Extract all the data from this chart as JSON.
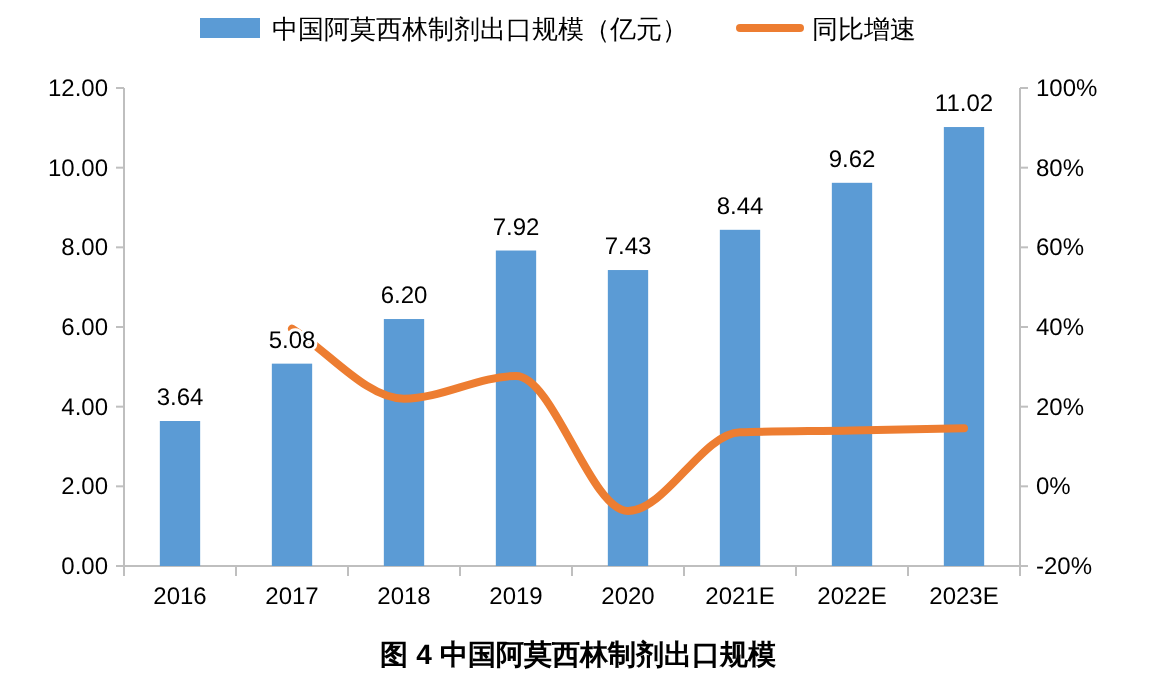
{
  "chart_data": {
    "type": "bar",
    "title": "图 4 中国阿莫西林制剂出口规模",
    "categories": [
      "2016",
      "2017",
      "2018",
      "2019",
      "2020",
      "2021E",
      "2022E",
      "2023E"
    ],
    "series": [
      {
        "name": "中国阿莫西林制剂出口规模（亿元）",
        "color": "#5b9bd5",
        "values": [
          3.64,
          5.08,
          6.2,
          7.92,
          7.43,
          8.44,
          9.62,
          11.02
        ],
        "value_labels": [
          "3.64",
          "5.08",
          "6.20",
          "7.92",
          "7.43",
          "8.44",
          "9.62",
          "11.02"
        ]
      },
      {
        "name": "同比增速",
        "type": "line",
        "axis": "y2",
        "color": "#ed7d31",
        "values": [
          null,
          39.6,
          22.0,
          27.7,
          -6.2,
          13.6,
          14.0,
          14.6
        ]
      }
    ],
    "ylim": [
      0,
      12
    ],
    "yticks": [
      {
        "value": 0,
        "label": "0.00"
      },
      {
        "value": 2,
        "label": "2.00"
      },
      {
        "value": 4,
        "label": "4.00"
      },
      {
        "value": 6,
        "label": "6.00"
      },
      {
        "value": 8,
        "label": "8.00"
      },
      {
        "value": 10,
        "label": "10.00"
      },
      {
        "value": 12,
        "label": "12.00"
      }
    ],
    "y2lim": [
      -20,
      100
    ],
    "y2ticks": [
      {
        "value": -20,
        "label": "-20%"
      },
      {
        "value": 0,
        "label": "0%"
      },
      {
        "value": 20,
        "label": "20%"
      },
      {
        "value": 40,
        "label": "40%"
      },
      {
        "value": 60,
        "label": "60%"
      },
      {
        "value": 80,
        "label": "80%"
      },
      {
        "value": 100,
        "label": "100%"
      }
    ],
    "grid": false,
    "legend": "top",
    "marker": "none",
    "line_style": "solid"
  }
}
